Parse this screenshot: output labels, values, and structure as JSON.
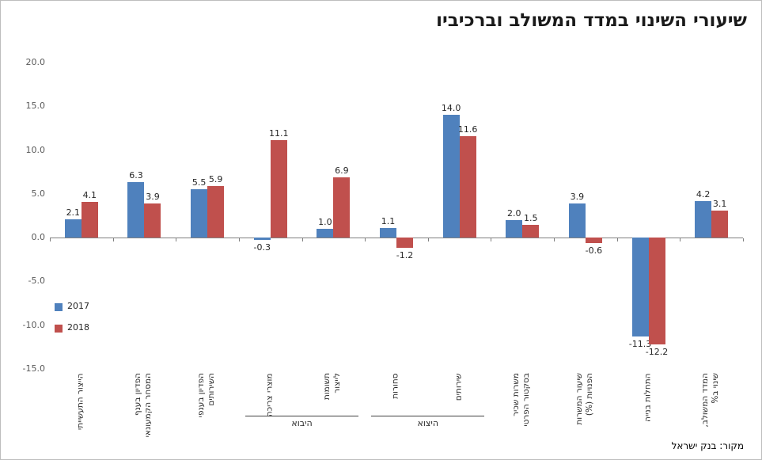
{
  "title": "שיעורי השינוי במדד המשולב וברכיביו",
  "source": "מקור: בנק ישראל",
  "chart_data": {
    "type": "bar",
    "title": "שיעורי השינוי במדד המשולב וברכיביו",
    "direction": "rtl",
    "categories": [
      "הייצור התעשייתי",
      "הפדיון בענף\nהמסחר הקמעונאי",
      "הפדיון בענפי\nהשירותים",
      "מוצרי צריכה",
      "תשומות\nלייצור",
      "סחורות",
      "שירותים",
      "משרות שכיר\nבסקטור הפרטי",
      "שיעור המשרות\nהפנויות (%)",
      "התחלות בנייה",
      "המדד המשולב,\nשינוי ב%"
    ],
    "series": [
      {
        "name": "2017",
        "color": "#4f81bd",
        "values": [
          2.1,
          6.3,
          5.5,
          -0.3,
          1.0,
          1.1,
          14.0,
          2.0,
          3.9,
          -11.3,
          4.2
        ]
      },
      {
        "name": "2018",
        "color": "#c0504d",
        "values": [
          4.1,
          3.9,
          5.9,
          11.1,
          6.9,
          -1.2,
          11.6,
          1.5,
          -0.6,
          -12.2,
          3.1
        ]
      }
    ],
    "groups": [
      {
        "label": "היבוא",
        "from": 3,
        "to": 4
      },
      {
        "label": "היצוא",
        "from": 5,
        "to": 6
      }
    ],
    "ylim": [
      -15,
      20
    ],
    "yticks": [
      "20.0",
      "15.0",
      "10.0",
      "5.0",
      "0.0",
      "-5.0",
      "-10.0",
      "-15.0"
    ],
    "grid": false,
    "legend_position": "middle-left",
    "source": "מקור: בנק ישראל"
  }
}
